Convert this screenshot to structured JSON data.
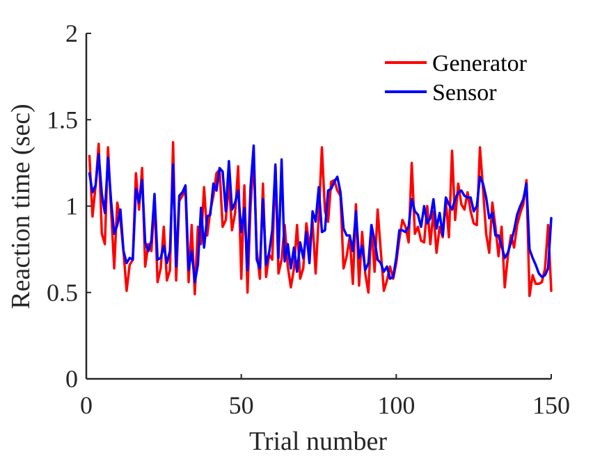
{
  "chart_data": {
    "type": "line",
    "xlabel": "Trial number",
    "ylabel": "Reaction time (sec)",
    "xlim": [
      0,
      150
    ],
    "ylim": [
      0,
      2
    ],
    "xticks": [
      "0",
      "50",
      "100",
      "150"
    ],
    "yticks": [
      "0",
      "0.5",
      "1",
      "1.5",
      "2"
    ],
    "grid": false,
    "legend_position": "top-right",
    "x": [
      1,
      2,
      3,
      4,
      5,
      6,
      7,
      8,
      9,
      10,
      11,
      12,
      13,
      14,
      15,
      16,
      17,
      18,
      19,
      20,
      21,
      22,
      23,
      24,
      25,
      26,
      27,
      28,
      29,
      30,
      31,
      32,
      33,
      34,
      35,
      36,
      37,
      38,
      39,
      40,
      41,
      42,
      43,
      44,
      45,
      46,
      47,
      48,
      49,
      50,
      51,
      52,
      53,
      54,
      55,
      56,
      57,
      58,
      59,
      60,
      61,
      62,
      63,
      64,
      65,
      66,
      67,
      68,
      69,
      70,
      71,
      72,
      73,
      74,
      75,
      76,
      77,
      78,
      79,
      80,
      81,
      82,
      83,
      84,
      85,
      86,
      87,
      88,
      89,
      90,
      91,
      92,
      93,
      94,
      95,
      96,
      97,
      98,
      99,
      100,
      101,
      102,
      103,
      104,
      105,
      106,
      107,
      108,
      109,
      110,
      111,
      112,
      113,
      114,
      115,
      116,
      117,
      118,
      119,
      120,
      121,
      122,
      123,
      124,
      125,
      126,
      127,
      128,
      129,
      130,
      131,
      132,
      133,
      134,
      135,
      136,
      137,
      138,
      139,
      140,
      141,
      142,
      143,
      144,
      145,
      146,
      147,
      148,
      149,
      150
    ],
    "series": [
      {
        "name": "Generator",
        "color": "#ff0000",
        "values": [
          1.29,
          0.94,
          1.12,
          1.36,
          0.84,
          0.78,
          1.34,
          0.98,
          0.64,
          1.02,
          0.92,
          0.74,
          0.51,
          0.66,
          0.69,
          1.19,
          0.98,
          1.22,
          0.65,
          0.78,
          0.74,
          1.03,
          0.56,
          0.64,
          0.88,
          0.57,
          0.63,
          1.37,
          0.57,
          1.03,
          1.06,
          1.09,
          0.56,
          0.89,
          0.49,
          0.88,
          0.78,
          1.11,
          0.83,
          0.97,
          1.06,
          1.19,
          1.21,
          0.88,
          0.92,
          1.14,
          0.86,
          0.96,
          1.23,
          0.58,
          1.12,
          0.5,
          1.0,
          1.28,
          0.74,
          0.58,
          1.13,
          0.59,
          0.72,
          0.69,
          1.24,
          0.61,
          0.69,
          0.89,
          0.65,
          0.53,
          0.64,
          0.89,
          0.58,
          0.64,
          0.9,
          0.76,
          0.91,
          0.61,
          0.94,
          1.34,
          0.97,
          0.91,
          1.14,
          1.15,
          1.09,
          1.06,
          0.64,
          0.71,
          0.82,
          0.55,
          1.01,
          0.54,
          0.85,
          0.61,
          0.5,
          0.89,
          0.62,
          0.98,
          0.74,
          0.51,
          0.57,
          0.65,
          0.58,
          0.67,
          0.81,
          0.92,
          0.88,
          0.79,
          1.25,
          0.84,
          0.88,
          0.8,
          0.79,
          1.0,
          0.78,
          0.97,
          0.73,
          0.88,
          0.82,
          1.03,
          0.82,
          1.32,
          0.92,
          1.13,
          1.01,
          0.98,
          1.08,
          0.97,
          0.9,
          0.89,
          1.34,
          1.1,
          0.84,
          0.73,
          1.02,
          0.88,
          0.71,
          0.88,
          0.53,
          0.71,
          0.83,
          0.76,
          0.89,
          0.96,
          1.01,
          1.15,
          0.48,
          0.6,
          0.55,
          0.55,
          0.56,
          0.64,
          0.89,
          0.51
        ]
      },
      {
        "name": "Sensor",
        "color": "#0000ff",
        "values": [
          1.19,
          1.08,
          1.12,
          1.3,
          1.07,
          0.96,
          1.28,
          1.03,
          0.84,
          0.89,
          0.98,
          0.74,
          0.67,
          0.7,
          0.69,
          1.1,
          1.02,
          1.15,
          0.79,
          0.74,
          0.8,
          1.07,
          0.69,
          0.7,
          0.77,
          0.67,
          0.74,
          1.24,
          0.65,
          1.06,
          1.08,
          1.12,
          0.63,
          0.74,
          0.56,
          0.66,
          0.99,
          0.76,
          0.94,
          0.95,
          1.13,
          1.09,
          1.22,
          1.2,
          0.97,
          1.26,
          0.98,
          1.02,
          1.09,
          0.85,
          0.99,
          0.63,
          1.11,
          1.35,
          0.69,
          0.64,
          1.04,
          0.66,
          0.73,
          0.86,
          1.24,
          0.7,
          1.27,
          0.68,
          0.78,
          0.64,
          0.76,
          0.62,
          0.79,
          0.7,
          0.85,
          0.67,
          0.97,
          0.91,
          1.11,
          0.85,
          0.86,
          1.09,
          1.1,
          1.14,
          1.17,
          1.08,
          0.87,
          0.83,
          0.83,
          0.74,
          0.97,
          0.7,
          0.77,
          0.63,
          0.67,
          0.89,
          0.8,
          0.69,
          0.67,
          0.62,
          0.65,
          0.58,
          0.59,
          0.7,
          0.86,
          0.86,
          0.85,
          0.88,
          1.04,
          0.97,
          0.95,
          0.88,
          1.0,
          0.9,
          0.93,
          1.04,
          0.87,
          0.96,
          0.83,
          1.05,
          1.01,
          0.98,
          1.04,
          1.08,
          1.09,
          1.06,
          1.05,
          1.05,
          0.97,
          1.0,
          1.17,
          1.13,
          1.05,
          0.93,
          0.96,
          0.83,
          0.83,
          0.77,
          0.7,
          0.73,
          0.79,
          0.86,
          0.95,
          1.0,
          1.04,
          1.13,
          0.75,
          0.7,
          0.66,
          0.61,
          0.59,
          0.6,
          0.64,
          0.93
        ]
      }
    ]
  }
}
